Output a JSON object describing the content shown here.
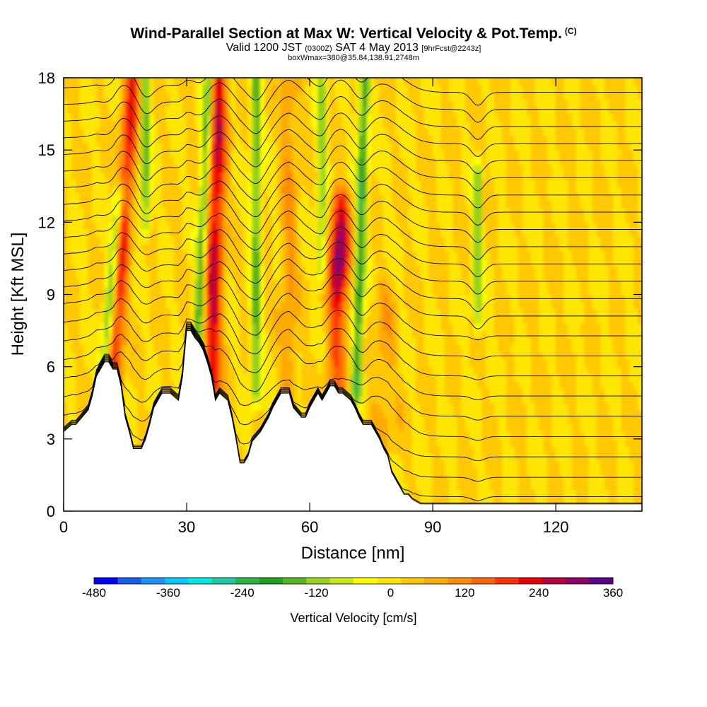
{
  "header": {
    "title": "Wind-Parallel Section at Max W: Vertical Velocity & Pot.Temp.",
    "title_sup": "(C)",
    "valid_prefix": "Valid 1200 JST",
    "valid_zone": "(0300Z)",
    "valid_date": "SAT 4 May 2013",
    "forecast": "[9hrFcst@2243z]",
    "box": "boxWmax=380@35.84,138.91,2748m"
  },
  "chart_data": {
    "type": "heatmap",
    "xlabel": "Distance [nm]",
    "ylabel": "Height [Kft MSL]",
    "xlim": [
      0,
      141
    ],
    "ylim": [
      0,
      18
    ],
    "x_ticks": [
      "0",
      "30",
      "60",
      "90",
      "120"
    ],
    "y_ticks": [
      "0",
      "3",
      "6",
      "9",
      "12",
      "15",
      "18"
    ],
    "grid": false,
    "terrain_profile": {
      "x_nm": [
        0,
        2,
        3,
        4,
        6,
        7,
        8,
        9,
        10,
        11,
        12,
        13,
        14,
        15,
        16,
        17,
        19,
        20,
        21,
        22,
        23,
        24,
        26,
        28,
        29,
        30,
        31,
        32,
        33,
        34,
        35,
        36,
        37,
        38,
        40,
        41,
        42,
        43,
        44,
        45,
        46,
        48,
        49,
        50,
        51,
        52,
        53,
        55,
        56,
        58,
        59,
        60,
        61,
        62,
        63,
        64,
        65,
        66,
        67,
        68,
        70,
        71,
        72,
        73,
        74,
        75,
        76,
        77,
        78,
        79,
        80,
        81,
        82,
        83,
        84,
        85,
        86,
        87,
        88,
        89,
        90,
        91,
        92,
        93,
        94,
        95,
        96,
        98,
        100,
        110,
        120,
        130,
        141
      ],
      "height_kft": [
        3.3,
        3.6,
        3.6,
        3.8,
        4.2,
        4.8,
        5.6,
        5.9,
        6.2,
        6.2,
        5.9,
        5.9,
        5.2,
        3.9,
        3.3,
        2.6,
        2.6,
        3.0,
        3.6,
        4.3,
        4.6,
        4.9,
        4.9,
        4.6,
        5.6,
        7.5,
        7.5,
        7.2,
        7.0,
        6.7,
        6.2,
        5.6,
        4.6,
        4.9,
        4.6,
        3.9,
        3.0,
        2.0,
        2.0,
        2.3,
        2.9,
        3.3,
        3.6,
        3.9,
        4.3,
        4.6,
        4.9,
        4.9,
        4.3,
        3.9,
        3.9,
        4.3,
        4.6,
        4.9,
        4.6,
        4.9,
        5.2,
        5.2,
        4.9,
        4.9,
        4.6,
        4.3,
        3.9,
        3.6,
        3.6,
        3.6,
        3.3,
        3.0,
        2.6,
        2.3,
        1.6,
        1.3,
        1.0,
        0.7,
        0.7,
        0.5,
        0.4,
        0.3,
        0.3,
        0.3,
        0.3,
        0.3,
        0.3,
        0.3,
        0.3,
        0.3,
        0.3,
        0.3,
        0.3,
        0.3,
        0.3,
        0.3,
        0.3
      ]
    },
    "features": [
      {
        "kind": "updraft",
        "x_nm": 14.5,
        "tilt_nm": 5,
        "y_range": [
          5,
          18
        ],
        "peak_cms": 240,
        "width_nm": 2.0
      },
      {
        "kind": "updraft",
        "x_nm": 37.0,
        "tilt_nm": 2,
        "y_range": [
          5,
          18
        ],
        "peak_cms": 280,
        "width_nm": 2.2
      },
      {
        "kind": "updraft",
        "x_nm": 67.0,
        "tilt_nm": 1,
        "y_range": [
          4.5,
          13
        ],
        "peak_cms": 360,
        "width_nm": 2.4
      },
      {
        "kind": "updraft",
        "x_nm": 55.0,
        "tilt_nm": 0,
        "y_range": [
          5,
          18
        ],
        "peak_cms": 120,
        "width_nm": 2.0
      },
      {
        "kind": "updraft",
        "x_nm": 78.0,
        "tilt_nm": 0,
        "y_range": [
          3,
          9
        ],
        "peak_cms": 100,
        "width_nm": 3.0
      },
      {
        "kind": "downdraft",
        "x_nm": 11.5,
        "tilt_nm": 4,
        "y_range": [
          5,
          13
        ],
        "peak_cms": -150,
        "width_nm": 1.3
      },
      {
        "kind": "downdraft",
        "x_nm": 20.0,
        "tilt_nm": 0,
        "y_range": [
          12,
          18
        ],
        "peak_cms": -140,
        "width_nm": 1.2
      },
      {
        "kind": "downdraft",
        "x_nm": 34.0,
        "tilt_nm": 3,
        "y_range": [
          6,
          18
        ],
        "peak_cms": -160,
        "width_nm": 1.2
      },
      {
        "kind": "downdraft",
        "x_nm": 47.0,
        "tilt_nm": 0,
        "y_range": [
          5,
          18
        ],
        "peak_cms": -150,
        "width_nm": 1.2
      },
      {
        "kind": "downdraft",
        "x_nm": 63.0,
        "tilt_nm": 0,
        "y_range": [
          10,
          18
        ],
        "peak_cms": -100,
        "width_nm": 1.2
      },
      {
        "kind": "downdraft",
        "x_nm": 72.5,
        "tilt_nm": 2,
        "y_range": [
          5,
          18
        ],
        "peak_cms": -190,
        "width_nm": 1.3
      },
      {
        "kind": "downdraft",
        "x_nm": 101.0,
        "tilt_nm": 0,
        "y_range": [
          8,
          14
        ],
        "peak_cms": -120,
        "width_nm": 1.0
      }
    ],
    "theta_contours_kft": [
      0.5,
      1.2,
      2.0,
      2.8,
      3.6,
      4.4,
      5.2,
      6.0,
      6.8,
      7.6,
      8.4,
      9.1,
      9.8,
      10.5,
      11.2,
      11.9,
      12.6,
      13.3,
      14.0,
      14.7,
      15.4,
      16.1,
      16.8,
      17.5
    ]
  },
  "colorbar": {
    "title": "Vertical Velocity [cm/s]",
    "ticks": [
      "-480",
      "-360",
      "-240",
      "-120",
      "0",
      "120",
      "240",
      "360"
    ],
    "min": -480,
    "max": 360,
    "step": 40,
    "colors": [
      "#0000ee",
      "#1a5cf0",
      "#1e90ff",
      "#00c8ff",
      "#00e5e0",
      "#1ec8a0",
      "#28b446",
      "#20a020",
      "#5ab41e",
      "#96d21e",
      "#c8e614",
      "#ffff00",
      "#ffe600",
      "#ffc800",
      "#ffaa00",
      "#ff8c00",
      "#ff6400",
      "#ff3200",
      "#e60000",
      "#b4003c",
      "#8c0064",
      "#5a008c"
    ]
  }
}
